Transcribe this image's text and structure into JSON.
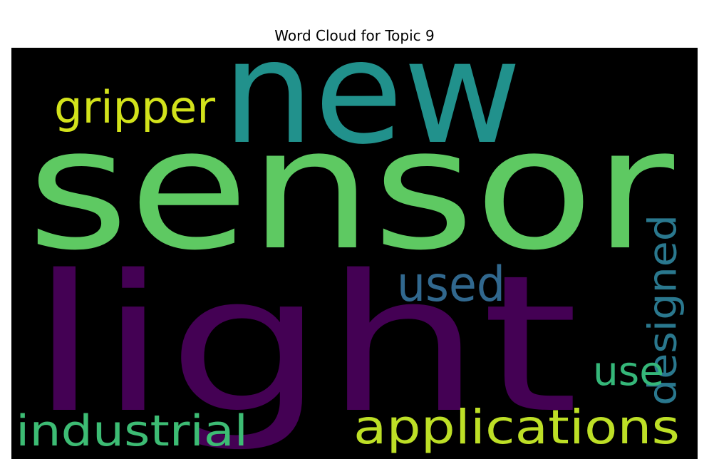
{
  "chart_data": {
    "type": "wordcloud",
    "title": "Word Cloud for Topic 9",
    "background": "#000000",
    "colormap": "viridis",
    "words": [
      {
        "text": "sensor",
        "color": "#5ec962"
      },
      {
        "text": "light",
        "color": "#440154"
      },
      {
        "text": "new",
        "color": "#21918c"
      },
      {
        "text": "gripper",
        "color": "#d2e21b"
      },
      {
        "text": "used",
        "color": "#31688e"
      },
      {
        "text": "designed",
        "color": "#2a788e"
      },
      {
        "text": "use",
        "color": "#35b779"
      },
      {
        "text": "industrial",
        "color": "#3dbc74"
      },
      {
        "text": "applications",
        "color": "#bddf26"
      }
    ]
  }
}
